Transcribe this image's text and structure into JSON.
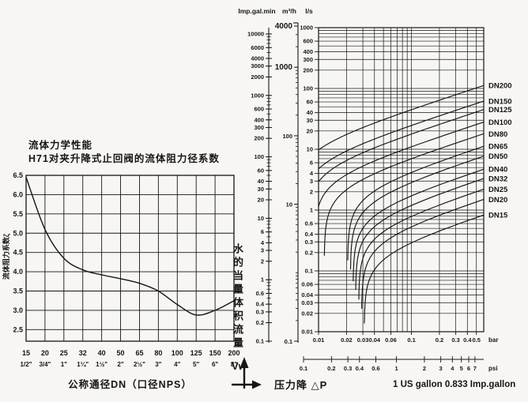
{
  "page": {
    "bg": "#f7f6f3",
    "ink": "#161616"
  },
  "left_section": {
    "title_line1": "流体力学性能",
    "title_line2": "H71对夹升降式止回阀的流体阻力径系数"
  },
  "right_section": {
    "unit_imp": "Imp.gal.min",
    "unit_m3h": "m³/h",
    "unit_ls": "l/s",
    "water_flow_label": "水的当量体积流量",
    "water_flow_symbol": "Vw",
    "pressure_drop_label": "压力降 △P",
    "gallon_note": "1 US gallon 0.833 Imp.gallon",
    "bar_unit": "bar",
    "psi_unit": "psi"
  },
  "chart_data": [
    {
      "id": "zeta-vs-dn",
      "type": "line",
      "title": "H71对夹升降式止回阀的流体阻力径系数",
      "ylabel": "流体阻力系数ζ",
      "xlabel": "公称通径DN（口径NPS）",
      "categories_dn": [
        "15",
        "20",
        "25",
        "32",
        "40",
        "50",
        "65",
        "80",
        "100",
        "125",
        "150",
        "200"
      ],
      "categories_nps": [
        "1/2\"",
        "3/4\"",
        "1\"",
        "1¼\"",
        "1½\"",
        "2\"",
        "2½\"",
        "3\"",
        "4\"",
        "5\"",
        "6\"",
        "8\""
      ],
      "values_zeta": [
        6.45,
        5.1,
        4.35,
        4.05,
        3.92,
        3.82,
        3.7,
        3.5,
        3.15,
        2.88,
        3.0,
        3.25
      ],
      "y_tick_labels": [
        "6.5",
        "6.0",
        "5.5",
        "5.0",
        "4.5",
        "4.0",
        "3.5",
        "3.0",
        "2.5"
      ],
      "ylim": [
        2.2,
        6.5
      ],
      "grid": true
    },
    {
      "id": "flow-vs-pressure-drop",
      "type": "line",
      "x_scale": "log",
      "y_scale": "log",
      "xlabel": "压力降 △P (bar / psi)",
      "ylabel": "水的当量体积流量 Vw (l/s)",
      "xlim_bar": [
        0.01,
        0.6
      ],
      "ylim_ls": [
        0.01,
        1000
      ],
      "x_tick_labels_bar": [
        "0.01",
        "0.02",
        "0.03",
        "0.04",
        "0.06",
        "0.1",
        "0.2",
        "0.3",
        "0.4",
        "0.5"
      ],
      "x_tick_labels_psi": [
        "0.1",
        "0.2",
        "0.3",
        "0.4",
        "0.6",
        "1",
        "2",
        "3",
        "4",
        "5",
        "6",
        "7"
      ],
      "y_tick_labels_ls": [
        "1000",
        "600",
        "400",
        "300",
        "200",
        "100",
        "60",
        "40",
        "30",
        "20",
        "10",
        "6",
        "4",
        "3",
        "2",
        "1",
        "0.6",
        "0.4",
        "0.3",
        "0.2",
        "0.1",
        "0.06",
        "0.04",
        "0.03",
        "0.02",
        "0.01"
      ],
      "imp_gal_min_scale_labels": [
        "10000",
        "6000",
        "4000",
        "3000",
        "2000",
        "1000",
        "600",
        "400",
        "300",
        "200",
        "100",
        "60",
        "40",
        "30",
        "20",
        "10",
        "6",
        "4",
        "3",
        "2",
        "1",
        "0.6",
        "0.4",
        "0.3",
        "0.2",
        "0.1"
      ],
      "m3h_scale_labels": [
        "4000",
        "1000",
        "100",
        "10",
        "0.1"
      ],
      "series": [
        {
          "name": "DN200",
          "cracking_dp_bar": 0.0055,
          "flow_ls_at_0p6bar": 112
        },
        {
          "name": "DN150",
          "cracking_dp_bar": 0.0065,
          "flow_ls_at_0p6bar": 62
        },
        {
          "name": "DN125",
          "cracking_dp_bar": 0.0075,
          "flow_ls_at_0p6bar": 45
        },
        {
          "name": "DN100",
          "cracking_dp_bar": 0.009,
          "flow_ls_at_0p6bar": 28
        },
        {
          "name": "DN80",
          "cracking_dp_bar": 0.0115,
          "flow_ls_at_0p6bar": 18
        },
        {
          "name": "DN65",
          "cracking_dp_bar": 0.0205,
          "flow_ls_at_0p6bar": 11.2
        },
        {
          "name": "DN50",
          "cracking_dp_bar": 0.022,
          "flow_ls_at_0p6bar": 7.7
        },
        {
          "name": "DN40",
          "cracking_dp_bar": 0.0235,
          "flow_ls_at_0p6bar": 4.7
        },
        {
          "name": "DN32",
          "cracking_dp_bar": 0.025,
          "flow_ls_at_0p6bar": 3.3
        },
        {
          "name": "DN25",
          "cracking_dp_bar": 0.027,
          "flow_ls_at_0p6bar": 2.2
        },
        {
          "name": "DN20",
          "cracking_dp_bar": 0.029,
          "flow_ls_at_0p6bar": 1.5
        },
        {
          "name": "DN15",
          "cracking_dp_bar": 0.031,
          "flow_ls_at_0p6bar": 0.83
        }
      ]
    }
  ]
}
